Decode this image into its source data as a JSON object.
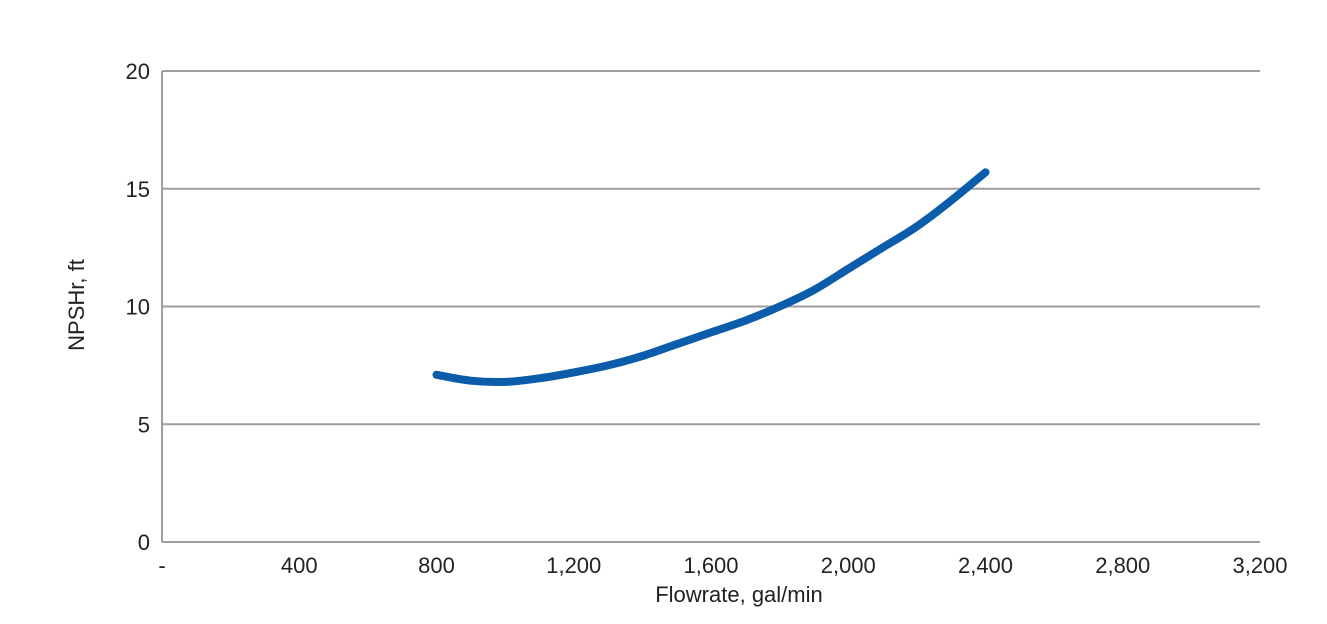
{
  "chart_data": {
    "type": "line",
    "title": "",
    "xlabel": "Flowrate, gal/min",
    "ylabel": "NPSHr, ft",
    "xlim": [
      0,
      3200
    ],
    "ylim": [
      0,
      20
    ],
    "x_ticks": [
      {
        "value": 0,
        "label": "-"
      },
      {
        "value": 400,
        "label": "400"
      },
      {
        "value": 800,
        "label": "800"
      },
      {
        "value": 1200,
        "label": "1,200"
      },
      {
        "value": 1600,
        "label": "1,600"
      },
      {
        "value": 2000,
        "label": "2,000"
      },
      {
        "value": 2400,
        "label": "2,400"
      },
      {
        "value": 2800,
        "label": "2,800"
      },
      {
        "value": 3200,
        "label": "3,200"
      }
    ],
    "y_ticks": [
      {
        "value": 0,
        "label": "0"
      },
      {
        "value": 5,
        "label": "5"
      },
      {
        "value": 10,
        "label": "10"
      },
      {
        "value": 15,
        "label": "15"
      },
      {
        "value": 20,
        "label": "20"
      }
    ],
    "grid": {
      "horizontal": true,
      "vertical": false
    },
    "series": [
      {
        "color": "#0b5cab",
        "x": [
          800,
          900,
          1000,
          1100,
          1200,
          1300,
          1400,
          1500,
          1600,
          1700,
          1800,
          1900,
          2000,
          2100,
          2200,
          2300,
          2400
        ],
        "y": [
          7.1,
          6.85,
          6.8,
          6.95,
          7.2,
          7.5,
          7.9,
          8.4,
          8.9,
          9.4,
          10.0,
          10.7,
          11.6,
          12.5,
          13.4,
          14.5,
          15.7
        ]
      }
    ]
  },
  "colors": {
    "gridline": "#9e9e9e",
    "axis": "#9e9e9e",
    "text": "#222222"
  }
}
